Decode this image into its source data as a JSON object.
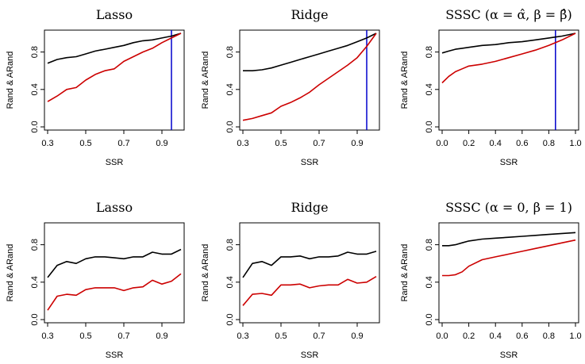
{
  "chart_data": [
    {
      "type": "line",
      "title": "Lasso",
      "xlabel": "SSR",
      "ylabel": "Rand & ARand",
      "xlim": [
        0.3,
        1.0
      ],
      "ylim": [
        0.0,
        1.0
      ],
      "xticks": [
        0.3,
        0.5,
        0.7,
        0.9
      ],
      "xtick_labels": [
        "0.3",
        "0.5",
        "0.7",
        "0.9"
      ],
      "yticks": [
        0.0,
        0.4,
        0.8
      ],
      "ytick_labels": [
        "0.0",
        "0.4",
        "0.8"
      ],
      "vline": 0.95,
      "series": [
        {
          "name": "Rand",
          "color": "#000000",
          "x": [
            0.3,
            0.35,
            0.4,
            0.45,
            0.5,
            0.55,
            0.6,
            0.65,
            0.7,
            0.75,
            0.8,
            0.85,
            0.9,
            0.95,
            1.0
          ],
          "y": [
            0.68,
            0.72,
            0.74,
            0.75,
            0.78,
            0.81,
            0.83,
            0.85,
            0.87,
            0.9,
            0.92,
            0.93,
            0.95,
            0.97,
            1.0
          ]
        },
        {
          "name": "ARand",
          "color": "#cc0000",
          "x": [
            0.3,
            0.35,
            0.4,
            0.45,
            0.5,
            0.55,
            0.6,
            0.65,
            0.7,
            0.75,
            0.8,
            0.85,
            0.9,
            0.95,
            1.0
          ],
          "y": [
            0.27,
            0.33,
            0.4,
            0.42,
            0.5,
            0.56,
            0.6,
            0.62,
            0.7,
            0.75,
            0.8,
            0.84,
            0.9,
            0.95,
            1.0
          ]
        }
      ]
    },
    {
      "type": "line",
      "title": "Ridge",
      "xlabel": "SSR",
      "ylabel": "Rand & ARand",
      "xlim": [
        0.3,
        1.0
      ],
      "ylim": [
        0.0,
        1.0
      ],
      "xticks": [
        0.3,
        0.5,
        0.7,
        0.9
      ],
      "xtick_labels": [
        "0.3",
        "0.5",
        "0.7",
        "0.9"
      ],
      "yticks": [
        0.0,
        0.4,
        0.8
      ],
      "ytick_labels": [
        "0.0",
        "0.4",
        "0.8"
      ],
      "vline": 0.95,
      "series": [
        {
          "name": "Rand",
          "color": "#000000",
          "x": [
            0.3,
            0.35,
            0.4,
            0.45,
            0.5,
            0.55,
            0.6,
            0.65,
            0.7,
            0.75,
            0.8,
            0.85,
            0.9,
            0.95,
            1.0
          ],
          "y": [
            0.6,
            0.6,
            0.61,
            0.63,
            0.66,
            0.69,
            0.72,
            0.75,
            0.78,
            0.81,
            0.84,
            0.87,
            0.91,
            0.95,
            1.0
          ]
        },
        {
          "name": "ARand",
          "color": "#cc0000",
          "x": [
            0.3,
            0.35,
            0.4,
            0.45,
            0.5,
            0.55,
            0.6,
            0.65,
            0.7,
            0.75,
            0.8,
            0.85,
            0.9,
            0.95,
            1.0
          ],
          "y": [
            0.07,
            0.09,
            0.12,
            0.15,
            0.22,
            0.26,
            0.31,
            0.37,
            0.45,
            0.52,
            0.59,
            0.66,
            0.74,
            0.86,
            1.0
          ]
        }
      ]
    },
    {
      "type": "line",
      "title": "SSSC (α = α̂, β = β̂)",
      "xlabel": "SSR",
      "ylabel": "Rand & ARand",
      "xlim": [
        0.0,
        1.0
      ],
      "ylim": [
        0.0,
        1.0
      ],
      "xticks": [
        0.0,
        0.2,
        0.4,
        0.6,
        0.8,
        1.0
      ],
      "xtick_labels": [
        "0.0",
        "0.2",
        "0.4",
        "0.6",
        "0.8",
        "1.0"
      ],
      "yticks": [
        0.0,
        0.4,
        0.8
      ],
      "ytick_labels": [
        "0.0",
        "0.4",
        "0.8"
      ],
      "vline": 0.85,
      "series": [
        {
          "name": "Rand",
          "color": "#000000",
          "x": [
            0.0,
            0.05,
            0.1,
            0.15,
            0.2,
            0.3,
            0.4,
            0.5,
            0.6,
            0.7,
            0.8,
            0.85,
            0.9,
            1.0
          ],
          "y": [
            0.79,
            0.81,
            0.83,
            0.84,
            0.85,
            0.87,
            0.88,
            0.9,
            0.91,
            0.93,
            0.95,
            0.96,
            0.97,
            1.0
          ]
        },
        {
          "name": "ARand",
          "color": "#cc0000",
          "x": [
            0.0,
            0.05,
            0.1,
            0.15,
            0.2,
            0.3,
            0.4,
            0.5,
            0.6,
            0.7,
            0.8,
            0.85,
            0.9,
            1.0
          ],
          "y": [
            0.47,
            0.54,
            0.59,
            0.62,
            0.65,
            0.67,
            0.7,
            0.74,
            0.78,
            0.82,
            0.87,
            0.9,
            0.93,
            1.0
          ]
        }
      ]
    },
    {
      "type": "line",
      "title": "Lasso",
      "xlabel": "SSR",
      "ylabel": "Rand & ARand",
      "xlim": [
        0.3,
        1.0
      ],
      "ylim": [
        0.0,
        1.0
      ],
      "xticks": [
        0.3,
        0.5,
        0.7,
        0.9
      ],
      "xtick_labels": [
        "0.3",
        "0.5",
        "0.7",
        "0.9"
      ],
      "yticks": [
        0.0,
        0.4,
        0.8
      ],
      "ytick_labels": [
        "0.0",
        "0.4",
        "0.8"
      ],
      "series": [
        {
          "name": "Rand",
          "color": "#000000",
          "x": [
            0.3,
            0.35,
            0.4,
            0.45,
            0.5,
            0.55,
            0.6,
            0.65,
            0.7,
            0.75,
            0.8,
            0.85,
            0.9,
            0.95,
            1.0
          ],
          "y": [
            0.45,
            0.58,
            0.62,
            0.6,
            0.65,
            0.67,
            0.67,
            0.66,
            0.65,
            0.67,
            0.67,
            0.72,
            0.7,
            0.7,
            0.75
          ]
        },
        {
          "name": "ARand",
          "color": "#cc0000",
          "x": [
            0.3,
            0.35,
            0.4,
            0.45,
            0.5,
            0.55,
            0.6,
            0.65,
            0.7,
            0.75,
            0.8,
            0.85,
            0.9,
            0.95,
            1.0
          ],
          "y": [
            0.1,
            0.25,
            0.27,
            0.26,
            0.32,
            0.34,
            0.34,
            0.34,
            0.31,
            0.34,
            0.35,
            0.42,
            0.38,
            0.41,
            0.49
          ]
        }
      ]
    },
    {
      "type": "line",
      "title": "Ridge",
      "xlabel": "SSR",
      "ylabel": "Rand & ARand",
      "xlim": [
        0.3,
        1.0
      ],
      "ylim": [
        0.0,
        1.0
      ],
      "xticks": [
        0.3,
        0.5,
        0.7,
        0.9
      ],
      "xtick_labels": [
        "0.3",
        "0.5",
        "0.7",
        "0.9"
      ],
      "yticks": [
        0.0,
        0.4,
        0.8
      ],
      "ytick_labels": [
        "0.0",
        "0.4",
        "0.8"
      ],
      "series": [
        {
          "name": "Rand",
          "color": "#000000",
          "x": [
            0.3,
            0.35,
            0.4,
            0.45,
            0.5,
            0.55,
            0.6,
            0.65,
            0.7,
            0.75,
            0.8,
            0.85,
            0.9,
            0.95,
            1.0
          ],
          "y": [
            0.45,
            0.6,
            0.62,
            0.58,
            0.67,
            0.67,
            0.68,
            0.65,
            0.67,
            0.67,
            0.68,
            0.72,
            0.7,
            0.7,
            0.73
          ]
        },
        {
          "name": "ARand",
          "color": "#cc0000",
          "x": [
            0.3,
            0.35,
            0.4,
            0.45,
            0.5,
            0.55,
            0.6,
            0.65,
            0.7,
            0.75,
            0.8,
            0.85,
            0.9,
            0.95,
            1.0
          ],
          "y": [
            0.15,
            0.27,
            0.28,
            0.26,
            0.37,
            0.37,
            0.38,
            0.34,
            0.36,
            0.37,
            0.37,
            0.43,
            0.39,
            0.4,
            0.46
          ]
        }
      ]
    },
    {
      "type": "line",
      "title": "SSSC (α = 0, β = 1)",
      "xlabel": "SSR",
      "ylabel": "Rand & ARand",
      "xlim": [
        0.0,
        1.0
      ],
      "ylim": [
        0.0,
        1.0
      ],
      "xticks": [
        0.0,
        0.2,
        0.4,
        0.6,
        0.8,
        1.0
      ],
      "xtick_labels": [
        "0.0",
        "0.2",
        "0.4",
        "0.6",
        "0.8",
        "1.0"
      ],
      "yticks": [
        0.0,
        0.4,
        0.8
      ],
      "ytick_labels": [
        "0.0",
        "0.4",
        "0.8"
      ],
      "series": [
        {
          "name": "Rand",
          "color": "#000000",
          "x": [
            0.0,
            0.05,
            0.1,
            0.15,
            0.2,
            0.3,
            0.4,
            0.5,
            0.6,
            0.7,
            0.8,
            0.9,
            1.0
          ],
          "y": [
            0.79,
            0.79,
            0.8,
            0.82,
            0.84,
            0.86,
            0.87,
            0.88,
            0.89,
            0.9,
            0.91,
            0.92,
            0.93
          ]
        },
        {
          "name": "ARand",
          "color": "#cc0000",
          "x": [
            0.0,
            0.05,
            0.1,
            0.15,
            0.2,
            0.3,
            0.4,
            0.5,
            0.6,
            0.7,
            0.8,
            0.9,
            1.0
          ],
          "y": [
            0.47,
            0.47,
            0.48,
            0.51,
            0.57,
            0.64,
            0.67,
            0.7,
            0.73,
            0.76,
            0.79,
            0.82,
            0.85
          ]
        }
      ]
    }
  ],
  "colors": {
    "vline": "#0000cc",
    "frame": "#000000"
  }
}
